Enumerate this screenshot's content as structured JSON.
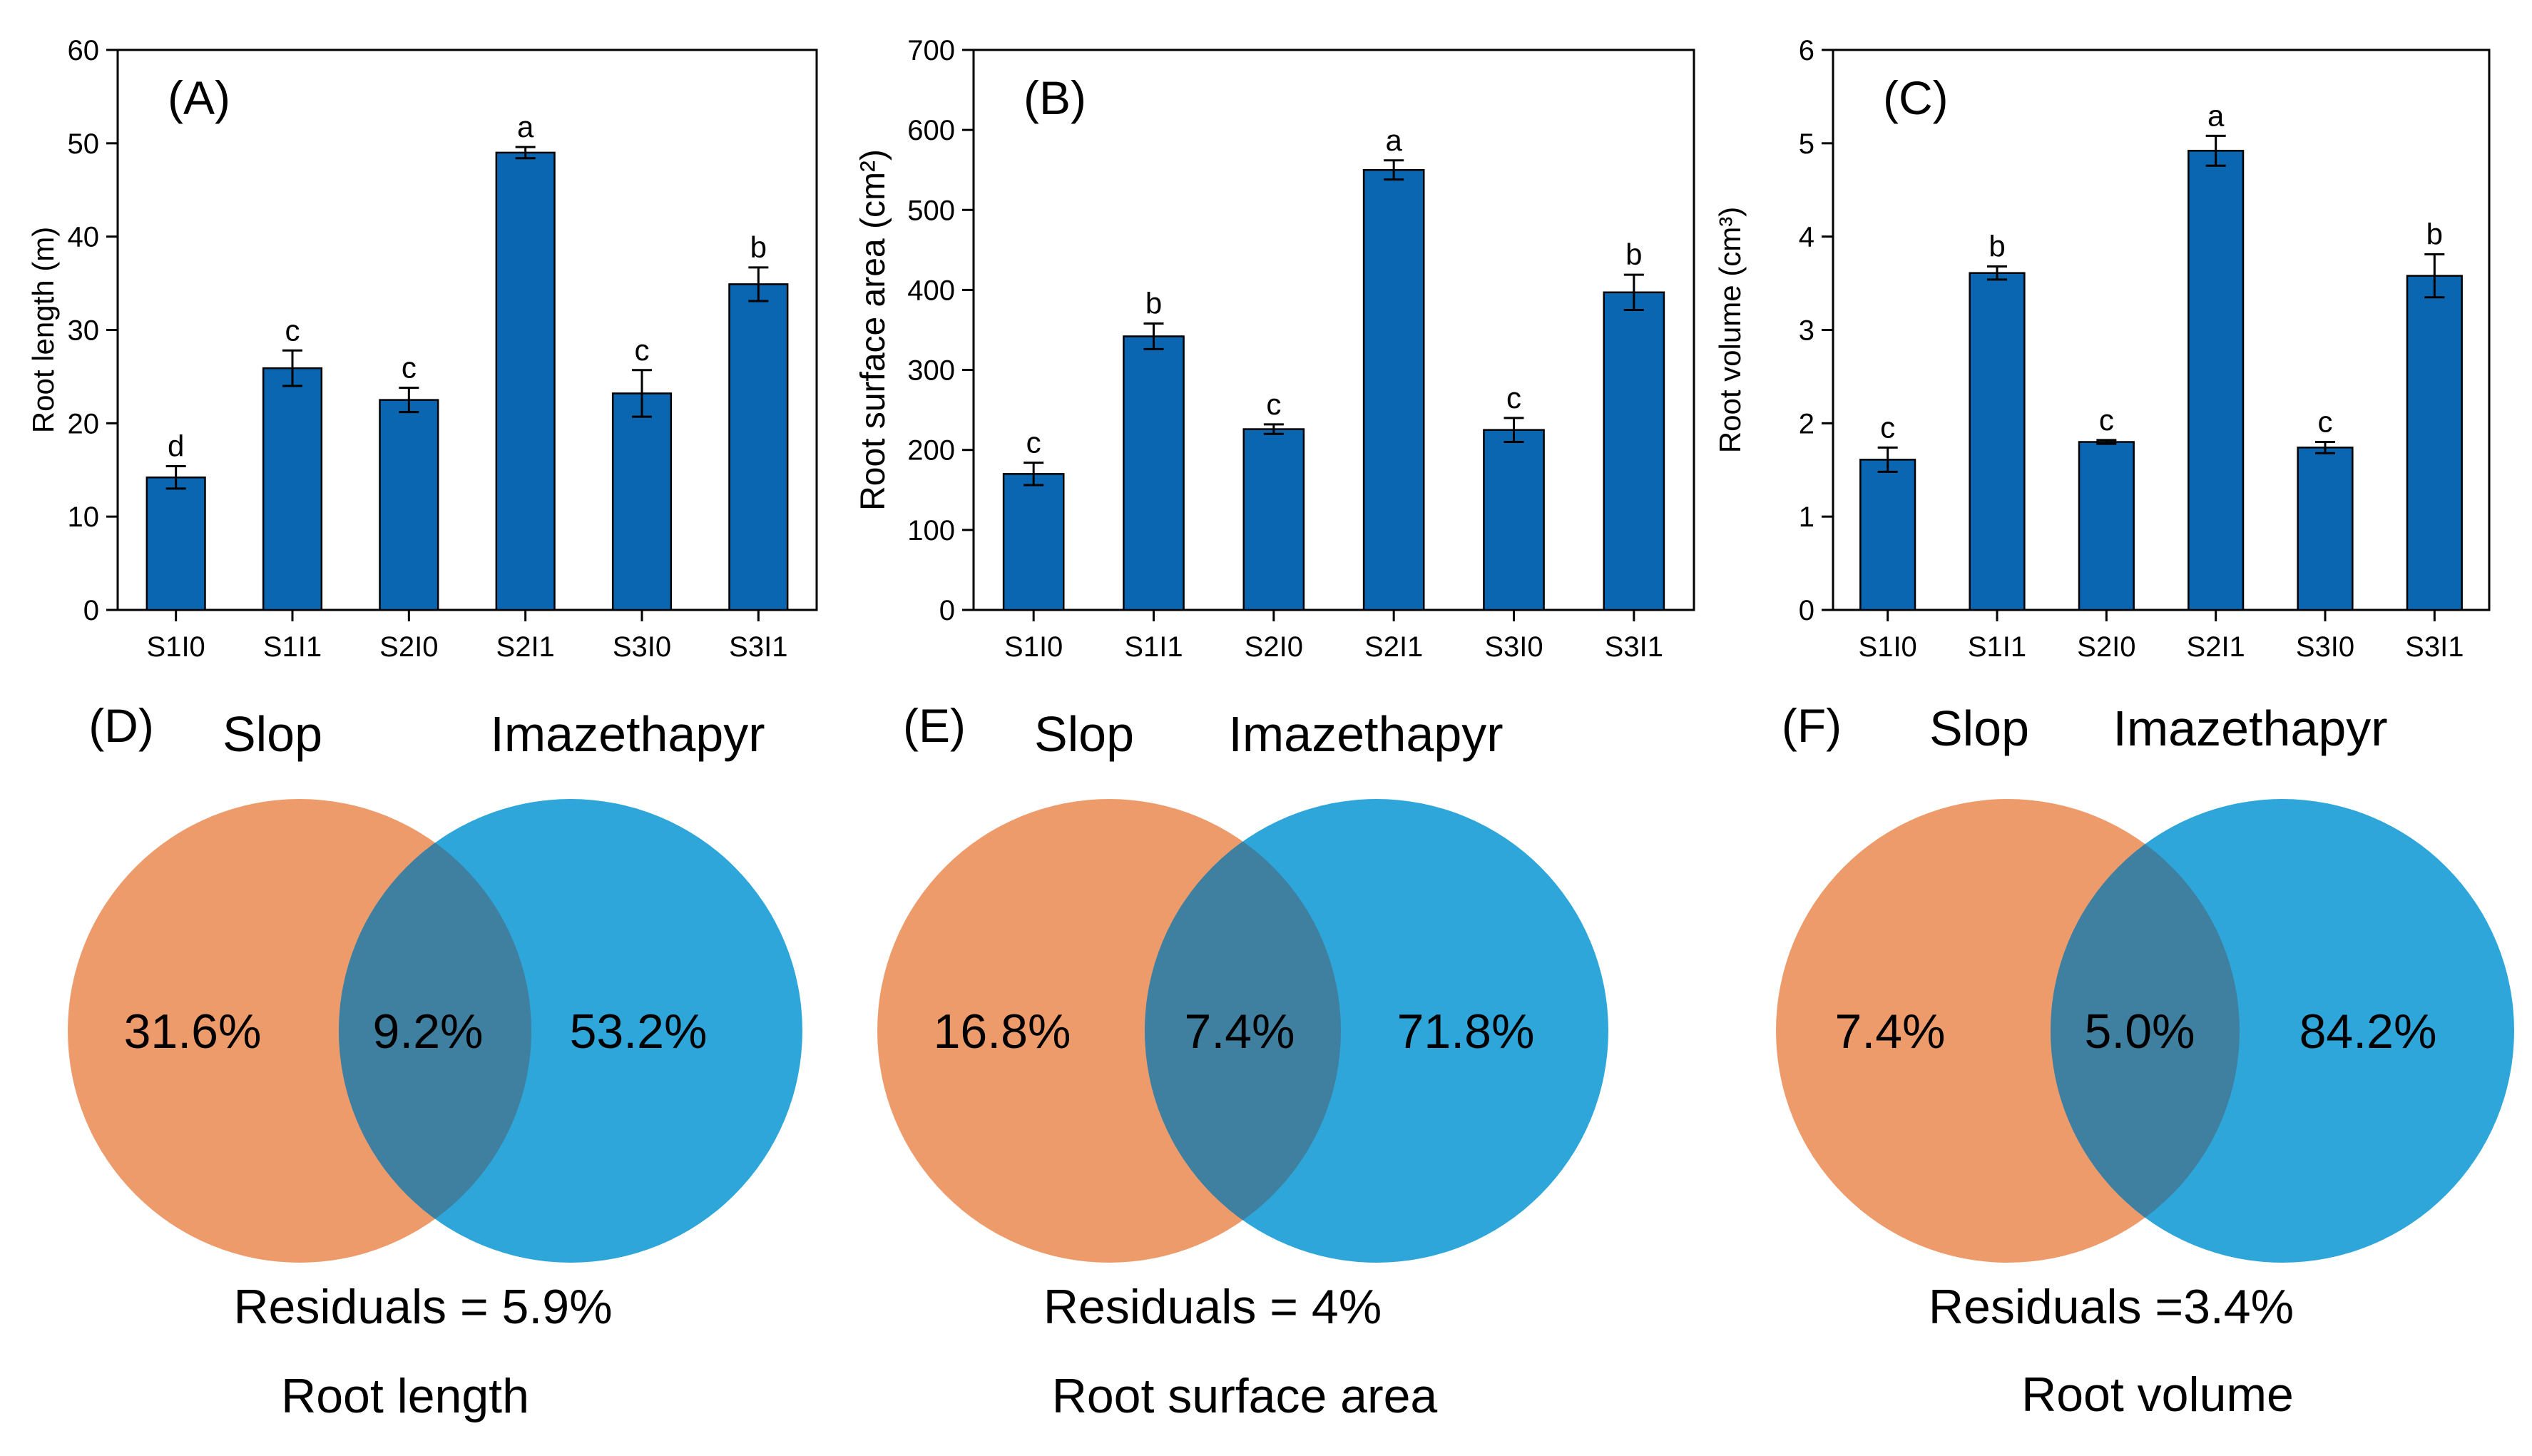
{
  "colors": {
    "bar": "#0a66b0",
    "slope_circle": "#ee9b6c",
    "imaz_circle": "#2ea6da",
    "overlap": "#3f7f9f"
  },
  "chart_data": [
    {
      "type": "bar",
      "panel": "(A)",
      "title": "",
      "xlabel": "",
      "ylabel": "Root length (m)",
      "ylim": [
        0,
        60
      ],
      "yticks": [
        0,
        10,
        20,
        30,
        40,
        50,
        60
      ],
      "categories": [
        "S1I0",
        "S1I1",
        "S2I0",
        "S2I1",
        "S3I0",
        "S3I1"
      ],
      "values": [
        14.2,
        25.9,
        22.5,
        49.0,
        23.2,
        34.9
      ],
      "errors": [
        1.2,
        1.9,
        1.3,
        0.6,
        2.5,
        1.8
      ],
      "letters": [
        "d",
        "c",
        "c",
        "a",
        "c",
        "b"
      ]
    },
    {
      "type": "bar",
      "panel": "(B)",
      "title": "",
      "xlabel": "",
      "ylabel": "Root surface area (cm²)",
      "ylim": [
        0,
        700
      ],
      "yticks": [
        0,
        100,
        200,
        300,
        400,
        500,
        600,
        700
      ],
      "categories": [
        "S1I0",
        "S1I1",
        "S2I0",
        "S2I1",
        "S3I0",
        "S3I1"
      ],
      "values": [
        170,
        342,
        226,
        550,
        225,
        397
      ],
      "errors": [
        14,
        16,
        6,
        12,
        15,
        22
      ],
      "letters": [
        "c",
        "b",
        "c",
        "a",
        "c",
        "b"
      ]
    },
    {
      "type": "bar",
      "panel": "(C)",
      "title": "",
      "xlabel": "",
      "ylabel": "Root volume (cm³)",
      "ylim": [
        0,
        6
      ],
      "yticks": [
        0,
        1,
        2,
        3,
        4,
        5,
        6
      ],
      "categories": [
        "S1I0",
        "S1I1",
        "S2I0",
        "S2I1",
        "S3I0",
        "S3I1"
      ],
      "values": [
        1.61,
        3.61,
        1.8,
        4.92,
        1.74,
        3.58
      ],
      "errors": [
        0.13,
        0.07,
        0.02,
        0.16,
        0.06,
        0.23
      ],
      "letters": [
        "c",
        "b",
        "c",
        "a",
        "c",
        "b"
      ]
    }
  ],
  "venn": [
    {
      "panel": "(D)",
      "left_label": "Slop",
      "right_label": "Imazethapyr",
      "left_value": "31.6%",
      "overlap_value": "9.2%",
      "right_value": "53.2%",
      "residuals": "Residuals = 5.9%",
      "caption": "Root length"
    },
    {
      "panel": "(E)",
      "left_label": "Slop",
      "right_label": "Imazethapyr",
      "left_value": "16.8%",
      "overlap_value": "7.4%",
      "right_value": "71.8%",
      "residuals": "Residuals = 4%",
      "caption": "Root surface area"
    },
    {
      "panel": "(F)",
      "left_label": "Slop",
      "right_label": "Imazethapyr",
      "left_value": "7.4%",
      "overlap_value": "5.0%",
      "right_value": "84.2%",
      "residuals": "Residuals =3.4%",
      "caption": "Root volume"
    }
  ]
}
